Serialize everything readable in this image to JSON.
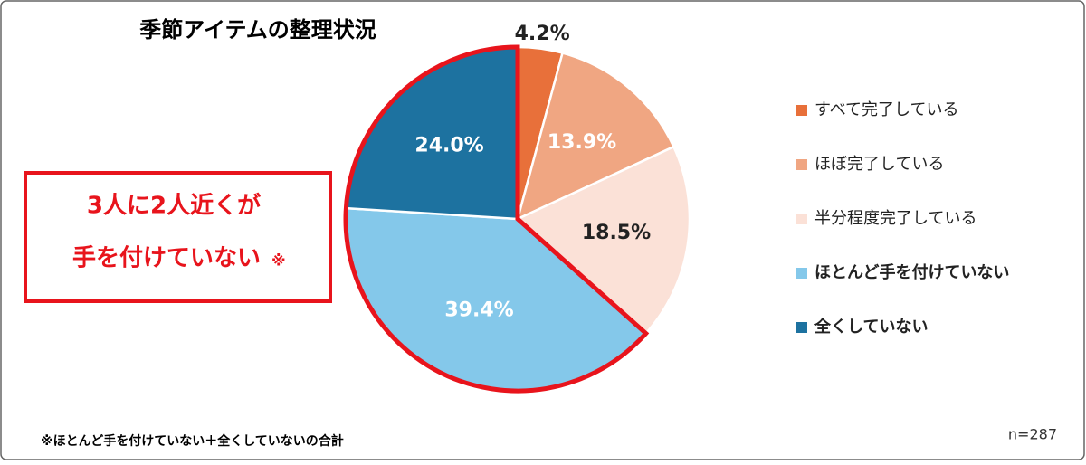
{
  "chart_data": {
    "type": "pie",
    "title": "季節アイテムの整理状況",
    "categories": [
      "すべて完了している",
      "ほぼ完了している",
      "半分程度完了している",
      "ほとんど手を付けていない",
      "全くしていない"
    ],
    "values": [
      4.2,
      13.9,
      18.5,
      39.4,
      24.0
    ],
    "value_labels": [
      "4.2%",
      "13.9%",
      "18.5%",
      "39.4%",
      "24.0%"
    ],
    "colors": [
      "#e8703a",
      "#f0a682",
      "#fbe1d7",
      "#84c8ea",
      "#1d72a0"
    ],
    "legend": "right",
    "annotation": {
      "lines": [
        "3人に2人近くが",
        "手を付けていない"
      ],
      "mark": "※"
    },
    "footnote": "※ほとんど手を付けていない＋全くしていないの合計",
    "sample": "n=287"
  }
}
